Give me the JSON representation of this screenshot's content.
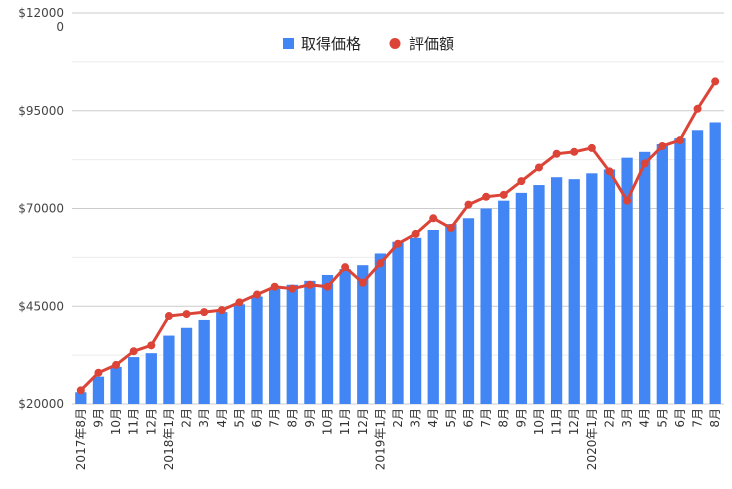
{
  "chart_data": {
    "type": "bar+line",
    "legend_position": "top",
    "grid": true,
    "y_tick_labels": [
      "$20000",
      "$45000",
      "$70000",
      "$95000",
      "$12000\n0"
    ],
    "ylim": [
      20000,
      120000
    ],
    "categories": [
      "2017年8月",
      "9月",
      "10月",
      "11月",
      "12月",
      "2018年1月",
      "2月",
      "3月",
      "4月",
      "5月",
      "6月",
      "7月",
      "8月",
      "9月",
      "10月",
      "11月",
      "12月",
      "2019年1月",
      "2月",
      "3月",
      "4月",
      "5月",
      "6月",
      "7月",
      "8月",
      "9月",
      "10月",
      "11月",
      "12月",
      "2020年1月",
      "2月",
      "3月",
      "4月",
      "5月",
      "6月",
      "7月",
      "8月"
    ],
    "series": [
      {
        "name": "取得価格",
        "type": "bar",
        "color": "#4285f4",
        "values": [
          23000,
          27000,
          29500,
          32000,
          33000,
          37500,
          39500,
          41500,
          43500,
          45500,
          47500,
          49500,
          50500,
          51500,
          53000,
          54500,
          55500,
          58500,
          61500,
          62500,
          64500,
          66000,
          67500,
          70000,
          72000,
          74000,
          76000,
          78000,
          77500,
          79000,
          80000,
          83000,
          84500,
          86500,
          88000,
          90000,
          92000
        ]
      },
      {
        "name": "評価額",
        "type": "line",
        "color": "#db4437",
        "values": [
          23500,
          28000,
          30000,
          33500,
          35000,
          42500,
          43000,
          43500,
          44000,
          46000,
          48000,
          50000,
          49500,
          50500,
          50000,
          55000,
          51000,
          56000,
          61000,
          63500,
          67500,
          65000,
          71000,
          73000,
          73500,
          77000,
          80500,
          84000,
          84500,
          85500,
          79500,
          72000,
          81500,
          86000,
          87500,
          95500,
          102500
        ]
      }
    ]
  }
}
